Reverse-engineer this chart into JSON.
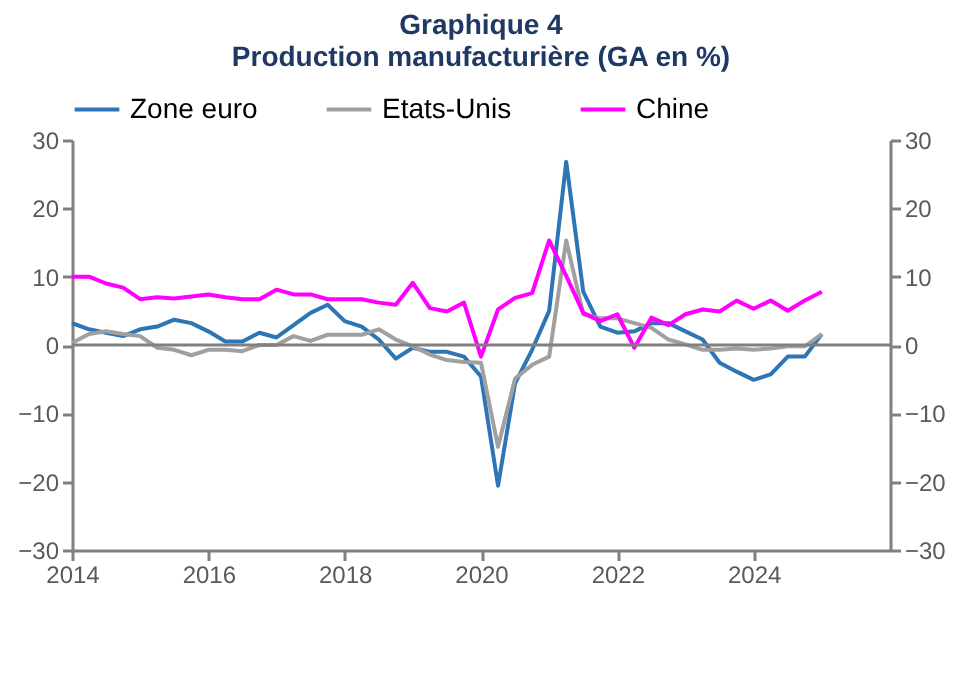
{
  "chart_data": {
    "type": "line",
    "title": "Graphique 4",
    "subtitle": "Production manufacturière (GA en %)",
    "x": [
      2014,
      2014.25,
      2014.5,
      2014.75,
      2015,
      2015.25,
      2015.5,
      2015.75,
      2016,
      2016.25,
      2016.5,
      2016.75,
      2017,
      2017.25,
      2017.5,
      2017.75,
      2018,
      2018.25,
      2018.5,
      2018.75,
      2019,
      2019.25,
      2019.5,
      2019.75,
      2020,
      2020.25,
      2020.5,
      2020.75,
      2021,
      2021.25,
      2021.5,
      2021.75,
      2022,
      2022.25,
      2022.5,
      2022.75,
      2023,
      2023.25,
      2023.5,
      2023.75,
      2024,
      2024.25,
      2024.5,
      2024.75,
      2025
    ],
    "series": [
      {
        "name": "Zone euro",
        "color": "#2e75b6",
        "values": [
          3.2,
          2.3,
          1.8,
          1.3,
          2.3,
          2.7,
          3.7,
          3.2,
          2,
          0.5,
          0.5,
          1.8,
          1.1,
          2.9,
          4.7,
          5.9,
          3.5,
          2.7,
          0.8,
          -2,
          -0.4,
          -1,
          -1,
          -1.7,
          -4.6,
          -20.6,
          -5.6,
          -0.7,
          5,
          26.8,
          7.8,
          2.7,
          1.8,
          2,
          3.2,
          3.2,
          2,
          0.8,
          -2.6,
          -3.9,
          -5.1,
          -4.3,
          -1.7,
          -1.7,
          1.6
        ]
      },
      {
        "name": "Etats-Unis",
        "color": "#a0a0a0",
        "values": [
          0.3,
          1.6,
          2,
          1.6,
          1.3,
          -0.4,
          -0.7,
          -1.5,
          -0.7,
          -0.7,
          -0.9,
          0,
          0,
          1.3,
          0.6,
          1.5,
          1.5,
          1.5,
          2.3,
          0.8,
          -0.2,
          -1.4,
          -2.2,
          -2.5,
          -2.6,
          -14.9,
          -4.9,
          -2.9,
          -1.7,
          15.3,
          4.5,
          3.9,
          3.9,
          3.2,
          2.5,
          0.8,
          0.1,
          -0.7,
          -0.7,
          -0.5,
          -0.7,
          -0.5,
          -0.2,
          -0.2,
          1.6
        ]
      },
      {
        "name": "Chine",
        "color": "#ff00ff",
        "values": [
          10,
          10,
          9,
          8.4,
          6.7,
          7,
          6.8,
          7.1,
          7.4,
          7,
          6.7,
          6.7,
          8.1,
          7.4,
          7.4,
          6.7,
          6.7,
          6.7,
          6.2,
          5.9,
          9.1,
          5.4,
          4.9,
          6.2,
          -1.7,
          5.2,
          6.9,
          7.6,
          15.3,
          10.1,
          4.7,
          3.5,
          4.5,
          -0.4,
          4,
          2.9,
          4.5,
          5.2,
          4.9,
          6.5,
          5.3,
          6.5,
          5,
          6.5,
          7.8
        ]
      }
    ],
    "xlim": [
      2014,
      2026
    ],
    "xticks": [
      2014,
      2016,
      2018,
      2020,
      2022,
      2024
    ],
    "ylim": [
      -30,
      30
    ],
    "yticks": [
      -30,
      -20,
      -10,
      0,
      10,
      20,
      30
    ],
    "y2lim": [
      -30,
      30
    ],
    "y2ticks": [
      -30,
      -20,
      -10,
      0,
      10,
      20,
      30
    ],
    "ref_lines": [
      {
        "axis": "y",
        "value": 0,
        "color": "#808080"
      }
    ],
    "legend": "top",
    "grid": false,
    "line_style": "solid",
    "marker": "none"
  }
}
